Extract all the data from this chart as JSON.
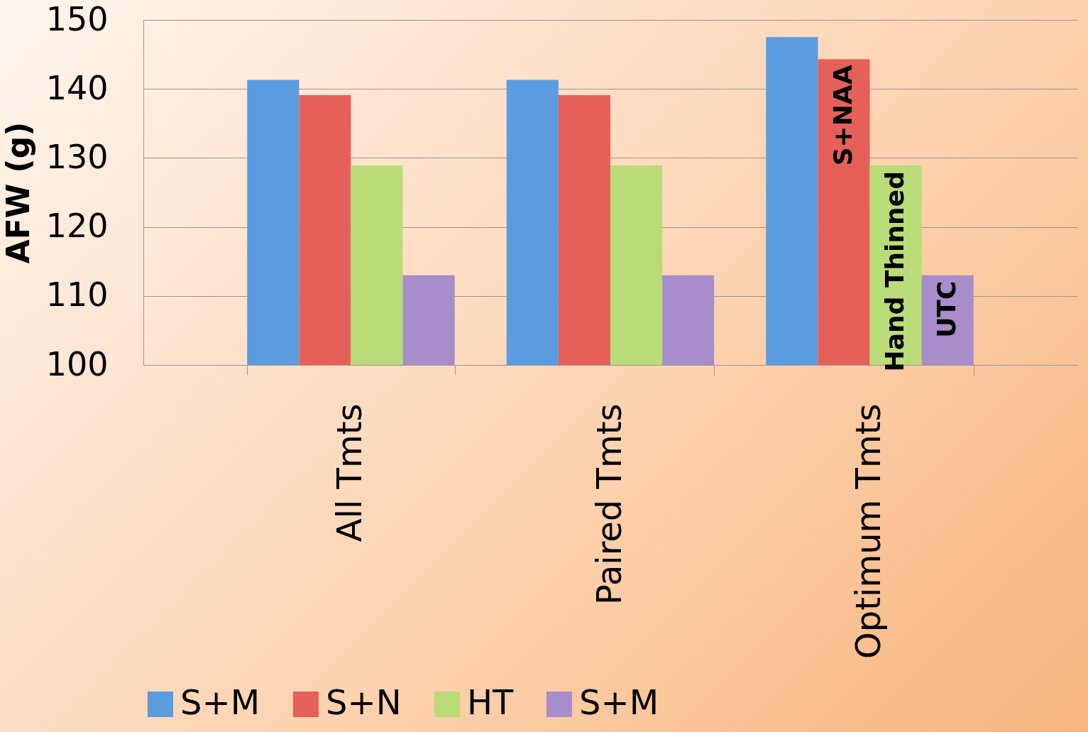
{
  "chart_data": {
    "type": "bar",
    "ylabel": "AFW (g)",
    "categories": [
      "All Tmts",
      "Paired Tmts",
      "Optimum Tmts"
    ],
    "series": [
      {
        "name": "S+M",
        "color": "#5b9bdf",
        "values": [
          141.3,
          141.3,
          147.5
        ]
      },
      {
        "name": "S+N",
        "color": "#e6605a",
        "values": [
          139.1,
          139.1,
          144.3
        ]
      },
      {
        "name": "HT",
        "color": "#b9dc78",
        "values": [
          128.9,
          128.9,
          128.9
        ]
      },
      {
        "name": "S+M",
        "color": "#a78dc9",
        "values": [
          113.0,
          113.0,
          113.0
        ]
      }
    ],
    "annotations": [
      {
        "text": "S+NAA",
        "x": "Optimum Tmts",
        "y": 144.3
      },
      {
        "text": "Hand Thinned",
        "x": "Optimum Tmts",
        "y": 128.9
      },
      {
        "text": "UTC",
        "x": "Optimum Tmts",
        "y": 113.0
      }
    ],
    "ylim": [
      100,
      150
    ],
    "yticks": [
      100,
      110,
      120,
      130,
      140,
      150
    ],
    "grid": "y",
    "legend": "bottom"
  }
}
